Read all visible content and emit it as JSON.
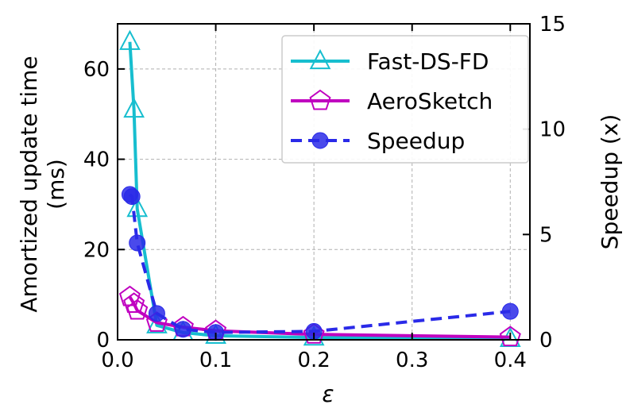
{
  "chart_data": {
    "type": "line",
    "xlabel": "ε",
    "ylabel_lines": [
      "Amortized update time",
      "(ms)"
    ],
    "y2label": "Speedup (x)",
    "xlim": [
      0.0,
      0.42
    ],
    "ylim": [
      0,
      70
    ],
    "y2lim": [
      0,
      15
    ],
    "grid": true,
    "x_ticks": [
      0.0,
      0.1,
      0.2,
      0.3,
      0.4
    ],
    "x_tick_labels": [
      "0.0",
      "0.1",
      "0.2",
      "0.3",
      "0.4"
    ],
    "y_ticks": [
      0,
      20,
      40,
      60
    ],
    "y_tick_labels": [
      "0",
      "20",
      "40",
      "60"
    ],
    "y2_ticks": [
      0,
      5,
      10,
      15
    ],
    "y2_tick_labels": [
      "0",
      "5",
      "10",
      "15"
    ],
    "legend_position": "top-right",
    "series": [
      {
        "name": "Fast-DS-FD",
        "axis": "left",
        "marker": "triangle",
        "color": "#17becf",
        "dash": false,
        "x": [
          0.0125,
          0.0167,
          0.02,
          0.04,
          0.0667,
          0.1,
          0.2,
          0.4
        ],
        "values": [
          66,
          51,
          29,
          3.2,
          1.6,
          0.9,
          0.5,
          0.2
        ]
      },
      {
        "name": "AeroSketch",
        "axis": "left",
        "marker": "pentagon",
        "color": "#c000c0",
        "dash": false,
        "x": [
          0.0125,
          0.0167,
          0.02,
          0.04,
          0.0667,
          0.1,
          0.2,
          0.4
        ],
        "values": [
          9.5,
          8,
          6.5,
          3.8,
          2.8,
          2.0,
          1.2,
          0.6
        ]
      },
      {
        "name": "Speedup",
        "axis": "right",
        "marker": "circle",
        "color": "#2a2ae8",
        "dash": true,
        "x": [
          0.0125,
          0.0147,
          0.02,
          0.04,
          0.0667,
          0.1,
          0.2,
          0.4
        ],
        "values": [
          6.9,
          6.8,
          4.6,
          1.25,
          0.5,
          0.35,
          0.4,
          1.35
        ]
      }
    ]
  }
}
